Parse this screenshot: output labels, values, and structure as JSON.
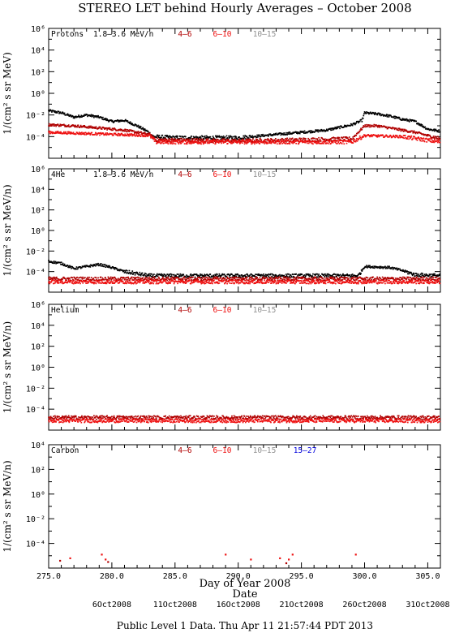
{
  "figure": {
    "title": "STEREO LET behind Hourly Averages – October 2008",
    "xlabel": "Day of Year 2008",
    "xtitle_below": "Date",
    "date_ticks": [
      "6Oct2008",
      "11Oct2008",
      "16Oct2008",
      "21Oct2008",
      "26Oct2008",
      "31Oct2008"
    ],
    "footer": "Public Level 1 Data. Thu Apr 11 21:57:44 PDT 2013",
    "x_tick_labels": [
      "275.0",
      "280.0",
      "285.0",
      "290.0",
      "295.0",
      "300.0",
      "305.0"
    ]
  },
  "chart_data": [
    {
      "type": "scatter",
      "panel_label": "Protons",
      "energy_label": "1.8–3.6 MeV/n",
      "legend": [
        {
          "label": "4–6",
          "color": "#b00000"
        },
        {
          "label": "6–10",
          "color": "#ee1111"
        },
        {
          "label": "10–15",
          "color": "#909090"
        }
      ],
      "ylabel": "1/(cm² s sr MeV)",
      "xlim": [
        275,
        306
      ],
      "ylog_range": [
        -6,
        6
      ],
      "ytick_exponents": [
        -4,
        -2,
        0,
        2,
        4,
        6
      ],
      "ytick_labels": [
        "10⁻⁴",
        "10⁻²",
        "10⁰",
        "10²",
        "10⁴",
        "10⁶"
      ],
      "series": [
        {
          "name": "1.8–3.6 MeV/n",
          "color": "#000000",
          "log10_values_profile": [
            [
              275.0,
              -1.6
            ],
            [
              276.0,
              -1.8
            ],
            [
              277.0,
              -2.2
            ],
            [
              278.0,
              -2.0
            ],
            [
              279.0,
              -2.2
            ],
            [
              280.0,
              -2.6
            ],
            [
              281.0,
              -2.5
            ],
            [
              282.0,
              -3.0
            ],
            [
              282.8,
              -3.5
            ],
            [
              283.3,
              -4.0
            ],
            [
              285.0,
              -4.1
            ],
            [
              290.0,
              -4.1
            ],
            [
              292.0,
              -3.9
            ],
            [
              295.0,
              -3.6
            ],
            [
              297.0,
              -3.4
            ],
            [
              299.0,
              -2.9
            ],
            [
              299.8,
              -2.5
            ],
            [
              300.0,
              -1.8
            ],
            [
              301.0,
              -1.9
            ],
            [
              302.0,
              -2.1
            ],
            [
              303.0,
              -2.4
            ],
            [
              304.0,
              -2.6
            ],
            [
              305.0,
              -3.3
            ],
            [
              306.0,
              -3.5
            ]
          ]
        },
        {
          "name": "4–6",
          "color": "#b00000",
          "log10_values_profile": [
            [
              275.0,
              -2.9
            ],
            [
              277.0,
              -3.0
            ],
            [
              278.0,
              -3.1
            ],
            [
              279.0,
              -3.2
            ],
            [
              281.0,
              -3.4
            ],
            [
              283.0,
              -3.8
            ],
            [
              283.5,
              -4.3
            ],
            [
              290.0,
              -4.4
            ],
            [
              299.0,
              -4.2
            ],
            [
              300.0,
              -3.0
            ],
            [
              301.0,
              -3.0
            ],
            [
              302.0,
              -3.2
            ],
            [
              304.0,
              -3.6
            ],
            [
              306.0,
              -4.2
            ]
          ]
        },
        {
          "name": "6–10",
          "color": "#ee1111",
          "log10_values_profile": [
            [
              275.0,
              -3.6
            ],
            [
              283.0,
              -3.9
            ],
            [
              283.5,
              -4.5
            ],
            [
              299.0,
              -4.5
            ],
            [
              300.0,
              -3.9
            ],
            [
              303.0,
              -4.0
            ],
            [
              306.0,
              -4.5
            ]
          ]
        }
      ]
    },
    {
      "type": "scatter",
      "panel_label": "4He",
      "energy_label": "1.8–3.6 MeV/n",
      "legend": [
        {
          "label": "4–6",
          "color": "#b00000"
        },
        {
          "label": "6–10",
          "color": "#ee1111"
        },
        {
          "label": "10–15",
          "color": "#909090"
        }
      ],
      "ylabel": "1/(cm² s sr MeV/n)",
      "xlim": [
        275,
        306
      ],
      "ylog_range": [
        -6,
        6
      ],
      "ytick_exponents": [
        -4,
        -2,
        0,
        2,
        4,
        6
      ],
      "ytick_labels": [
        "10⁻⁴",
        "10⁻²",
        "10⁰",
        "10²",
        "10⁴",
        "10⁶"
      ],
      "series": [
        {
          "name": "1.8–3.6 MeV/n",
          "color": "#000000",
          "log10_values_profile": [
            [
              275.0,
              -3.0
            ],
            [
              276.0,
              -3.2
            ],
            [
              277.0,
              -3.7
            ],
            [
              279.0,
              -3.3
            ],
            [
              280.0,
              -3.6
            ],
            [
              281.0,
              -4.0
            ],
            [
              282.0,
              -4.2
            ],
            [
              283.0,
              -4.4
            ],
            [
              299.5,
              -4.4
            ],
            [
              300.0,
              -3.5
            ],
            [
              302.0,
              -3.6
            ],
            [
              303.0,
              -3.9
            ],
            [
              304.0,
              -4.3
            ],
            [
              306.0,
              -4.4
            ]
          ]
        },
        {
          "name": "4–6",
          "color": "#b00000",
          "log10_values_profile": [
            [
              275.0,
              -4.7
            ],
            [
              306.0,
              -4.7
            ]
          ]
        },
        {
          "name": "6–10",
          "color": "#ee1111",
          "log10_values_profile": [
            [
              275.0,
              -5.0
            ],
            [
              306.0,
              -5.0
            ]
          ]
        }
      ]
    },
    {
      "type": "scatter",
      "panel_label": "Helium",
      "energy_label": "",
      "legend": [
        {
          "label": "4–6",
          "color": "#b00000"
        },
        {
          "label": "6–10",
          "color": "#ee1111"
        },
        {
          "label": "10–15",
          "color": "#909090"
        }
      ],
      "ylabel": "1/(cm² s sr MeV/n)",
      "xlim": [
        275,
        306
      ],
      "ylog_range": [
        -6,
        6
      ],
      "ytick_exponents": [
        -4,
        -2,
        0,
        2,
        4,
        6
      ],
      "ytick_labels": [
        "10⁻⁴",
        "10⁻²",
        "10⁰",
        "10²",
        "10⁴",
        "10⁶"
      ],
      "series": [
        {
          "name": "4–6",
          "color": "#b00000",
          "log10_values_profile": [
            [
              275.0,
              -4.8
            ],
            [
              306.0,
              -4.8
            ]
          ]
        },
        {
          "name": "6–10",
          "color": "#ee1111",
          "log10_values_profile": [
            [
              275.0,
              -5.1
            ],
            [
              306.0,
              -5.1
            ]
          ]
        }
      ]
    },
    {
      "type": "scatter",
      "panel_label": "Carbon",
      "energy_label": "",
      "legend": [
        {
          "label": "4–6",
          "color": "#b00000"
        },
        {
          "label": "6–10",
          "color": "#ee1111"
        },
        {
          "label": "10–15",
          "color": "#909090"
        },
        {
          "label": "15–27",
          "color": "#0000dd"
        }
      ],
      "ylabel": "1/(cm² s sr MeV/n)",
      "xlim": [
        275,
        306
      ],
      "ylog_range": [
        -6,
        4
      ],
      "ytick_exponents": [
        -4,
        -2,
        0,
        2,
        4
      ],
      "ytick_labels": [
        "10⁻⁴",
        "10⁻²",
        "10⁰",
        "10²",
        "10⁴"
      ],
      "series": [
        {
          "name": "6–10",
          "color": "#ee1111",
          "points": [
            [
              276.7,
              -5.2
            ],
            [
              279.2,
              -4.9
            ],
            [
              279.5,
              -5.3
            ],
            [
              289.0,
              -4.9
            ],
            [
              291.0,
              -5.3
            ],
            [
              293.3,
              -5.2
            ],
            [
              294.0,
              -5.3
            ],
            [
              294.3,
              -4.9
            ],
            [
              299.3,
              -4.9
            ]
          ]
        },
        {
          "name": "4–6",
          "color": "#b00000",
          "points": [
            [
              275.9,
              -5.4
            ],
            [
              279.7,
              -5.5
            ],
            [
              293.8,
              -5.6
            ]
          ]
        }
      ]
    }
  ]
}
